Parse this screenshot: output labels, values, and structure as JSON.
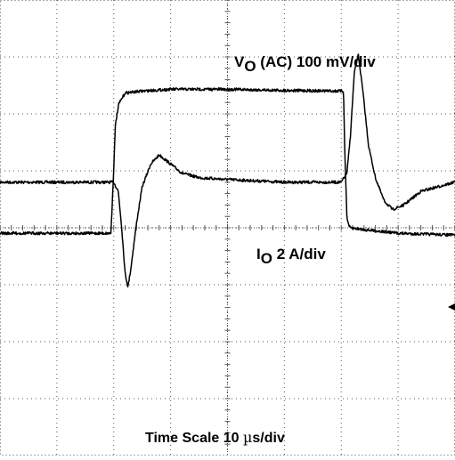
{
  "chart_data": {
    "type": "line",
    "title": "",
    "xlabel": "Time Scale 10 µs/div",
    "ylabel": "",
    "x_unit": "µs",
    "grid": true,
    "grid_divisions": {
      "x": 8,
      "y": 8
    },
    "xlim": [
      0,
      80
    ],
    "series": [
      {
        "name": "VO (AC) 100 mV/div",
        "unit": "mV",
        "ylim": [
          -300,
          200
        ],
        "points": [
          [
            0,
            0
          ],
          [
            20,
            0
          ],
          [
            20.8,
            -10
          ],
          [
            21.4,
            -50
          ],
          [
            22,
            -100
          ],
          [
            22.5,
            -115
          ],
          [
            23,
            -95
          ],
          [
            24,
            -45
          ],
          [
            25,
            -5
          ],
          [
            26.5,
            20
          ],
          [
            28,
            30
          ],
          [
            30,
            20
          ],
          [
            32,
            10
          ],
          [
            35,
            5
          ],
          [
            40,
            3
          ],
          [
            50,
            0
          ],
          [
            60,
            0
          ],
          [
            61,
            10
          ],
          [
            61.6,
            50
          ],
          [
            62.3,
            120
          ],
          [
            63,
            140
          ],
          [
            63.8,
            100
          ],
          [
            64.8,
            40
          ],
          [
            66,
            5
          ],
          [
            67.5,
            -20
          ],
          [
            69,
            -30
          ],
          [
            71,
            -25
          ],
          [
            74,
            -10
          ],
          [
            77,
            -5
          ],
          [
            80,
            0
          ]
        ]
      },
      {
        "name": "IO 2 A/div",
        "unit": "A",
        "ylim": [
          -10,
          2.5
        ],
        "points": [
          [
            0,
            -3.9
          ],
          [
            19,
            -3.9
          ],
          [
            19.5,
            -3.9
          ],
          [
            19.9,
            -2.5
          ],
          [
            20.3,
            -0.9
          ],
          [
            20.9,
            -0.35
          ],
          [
            22,
            -0.05
          ],
          [
            25,
            0
          ],
          [
            30,
            0.05
          ],
          [
            40,
            0.05
          ],
          [
            50,
            0.02
          ],
          [
            60.4,
            0
          ],
          [
            60.6,
            -1.5
          ],
          [
            61,
            -3.5
          ],
          [
            61.5,
            -3.75
          ],
          [
            64,
            -3.8
          ],
          [
            70,
            -3.9
          ],
          [
            80,
            -3.95
          ]
        ]
      }
    ]
  },
  "labels": {
    "ch1_main": "V",
    "ch1_sub": "O",
    "ch1_rest": " (AC) 100 mV/div",
    "ch2_main": "I",
    "ch2_sub": "O",
    "ch2_rest": " 2 A/div",
    "time_prefix": "Time Scale 10 ",
    "time_mu": "µ",
    "time_suffix": "s/div"
  },
  "colors": {
    "trace": "#000000",
    "grid": "#555555"
  }
}
